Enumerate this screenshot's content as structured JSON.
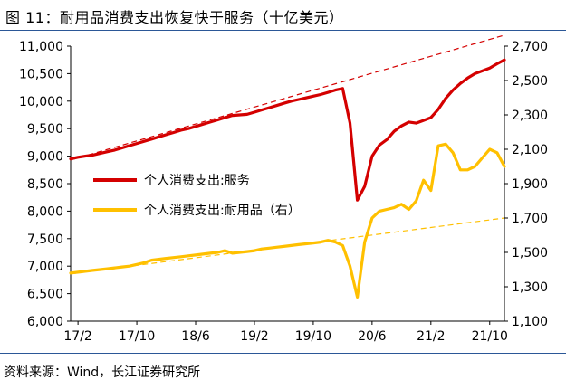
{
  "header": {
    "figure_label": "图 11：",
    "title": "耐用品消费支出恢复快于服务（十亿美元）"
  },
  "footer": {
    "source": "资料来源：Wind，长江证券研究所"
  },
  "colors": {
    "services": "#d40000",
    "durables": "#ffc000",
    "frame": "#2b5797"
  },
  "chart_data": {
    "type": "line",
    "title": "耐用品消费支出恢复快于服务（十亿美元）",
    "xlabel": "",
    "ylabel": "",
    "x_tick_labels": [
      "17/2",
      "17/10",
      "18/6",
      "19/2",
      "19/10",
      "20/6",
      "21/2",
      "21/10"
    ],
    "x_tick_dates": [
      "2017-02",
      "2017-10",
      "2018-06",
      "2019-02",
      "2019-10",
      "2020-06",
      "2021-02",
      "2021-10"
    ],
    "y_left": {
      "min": 6000,
      "max": 11000,
      "ticks": [
        "6,000",
        "6,500",
        "7,000",
        "7,500",
        "8,000",
        "8,500",
        "9,000",
        "9,500",
        "10,000",
        "10,500",
        "11,000"
      ]
    },
    "y_right": {
      "min": 1100,
      "max": 2700,
      "ticks": [
        "1,100",
        "1,300",
        "1,500",
        "1,700",
        "1,900",
        "2,100",
        "2,300",
        "2,500",
        "2,700"
      ]
    },
    "grid": false,
    "legend_position": "middle-left",
    "series": [
      {
        "name": "个人消费支出:服务",
        "axis": "left",
        "style": "solid",
        "x": [
          "2017-01",
          "2017-02",
          "2017-03",
          "2017-04",
          "2017-05",
          "2017-06",
          "2017-07",
          "2017-08",
          "2017-09",
          "2017-10",
          "2017-11",
          "2017-12",
          "2018-01",
          "2018-02",
          "2018-03",
          "2018-04",
          "2018-05",
          "2018-06",
          "2018-07",
          "2018-08",
          "2018-09",
          "2018-10",
          "2018-11",
          "2018-12",
          "2019-01",
          "2019-02",
          "2019-03",
          "2019-04",
          "2019-05",
          "2019-06",
          "2019-07",
          "2019-08",
          "2019-09",
          "2019-10",
          "2019-11",
          "2019-12",
          "2020-01",
          "2020-02",
          "2020-03",
          "2020-04",
          "2020-05",
          "2020-06",
          "2020-07",
          "2020-08",
          "2020-09",
          "2020-10",
          "2020-11",
          "2020-12",
          "2021-01",
          "2021-02",
          "2021-03",
          "2021-04",
          "2021-05",
          "2021-06",
          "2021-07",
          "2021-08",
          "2021-09",
          "2021-10",
          "2021-11",
          "2021-12"
        ],
        "values": [
          8950,
          8980,
          9000,
          9020,
          9050,
          9080,
          9110,
          9150,
          9190,
          9230,
          9270,
          9310,
          9350,
          9390,
          9430,
          9470,
          9500,
          9540,
          9580,
          9620,
          9660,
          9700,
          9740,
          9750,
          9760,
          9800,
          9840,
          9880,
          9920,
          9960,
          10000,
          10030,
          10060,
          10090,
          10120,
          10160,
          10200,
          10230,
          9600,
          8200,
          8450,
          9000,
          9200,
          9300,
          9450,
          9550,
          9620,
          9600,
          9650,
          9700,
          9850,
          10050,
          10200,
          10320,
          10420,
          10500,
          10550,
          10600,
          10680,
          10750
        ]
      },
      {
        "name": "个人消费支出:耐用品（右）",
        "axis": "right",
        "style": "solid",
        "x": [
          "2017-01",
          "2017-02",
          "2017-03",
          "2017-04",
          "2017-05",
          "2017-06",
          "2017-07",
          "2017-08",
          "2017-09",
          "2017-10",
          "2017-11",
          "2017-12",
          "2018-01",
          "2018-02",
          "2018-03",
          "2018-04",
          "2018-05",
          "2018-06",
          "2018-07",
          "2018-08",
          "2018-09",
          "2018-10",
          "2018-11",
          "2018-12",
          "2019-01",
          "2019-02",
          "2019-03",
          "2019-04",
          "2019-05",
          "2019-06",
          "2019-07",
          "2019-08",
          "2019-09",
          "2019-10",
          "2019-11",
          "2019-12",
          "2020-01",
          "2020-02",
          "2020-03",
          "2020-04",
          "2020-05",
          "2020-06",
          "2020-07",
          "2020-08",
          "2020-09",
          "2020-10",
          "2020-11",
          "2020-12",
          "2021-01",
          "2021-02",
          "2021-03",
          "2021-04",
          "2021-05",
          "2021-06",
          "2021-07",
          "2021-08",
          "2021-09",
          "2021-10",
          "2021-11",
          "2021-12"
        ],
        "values": [
          1380,
          1385,
          1390,
          1395,
          1400,
          1405,
          1410,
          1415,
          1420,
          1430,
          1440,
          1455,
          1460,
          1465,
          1470,
          1475,
          1480,
          1485,
          1490,
          1495,
          1500,
          1510,
          1495,
          1500,
          1505,
          1510,
          1520,
          1525,
          1530,
          1535,
          1540,
          1545,
          1550,
          1555,
          1560,
          1570,
          1560,
          1540,
          1420,
          1240,
          1560,
          1700,
          1740,
          1750,
          1760,
          1780,
          1750,
          1800,
          1920,
          1860,
          2120,
          2130,
          2080,
          1980,
          1980,
          2000,
          2050,
          2100,
          2080,
          2000
        ]
      }
    ],
    "trend_lines": [
      {
        "axis": "left",
        "style": "dashed",
        "color_of": "services",
        "x": [
          "2017-01",
          "2021-12"
        ],
        "values": [
          8930,
          11200
        ]
      },
      {
        "axis": "right",
        "style": "dashed",
        "color_of": "durables",
        "x": [
          "2017-01",
          "2021-12"
        ],
        "values": [
          1375,
          1700
        ]
      }
    ]
  }
}
